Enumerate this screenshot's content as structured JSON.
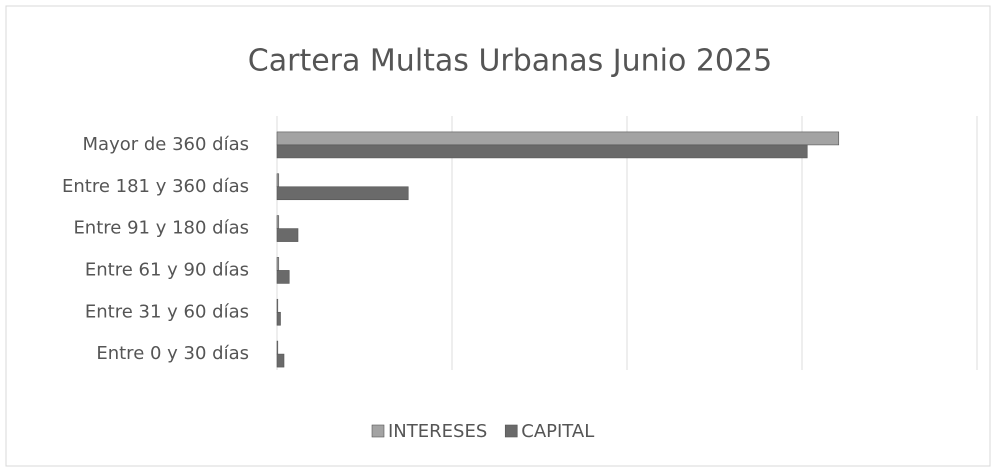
{
  "chart_data": {
    "type": "hbar",
    "title": "Cartera Multas Urbanas Junio 2025",
    "categories": [
      "Mayor de 360 días",
      "Entre 181 y 360 días",
      "Entre 91 y 180 días",
      "Entre 61 y 90 días",
      "Entre 31 y 60 días",
      "Entre 0 y 30 días"
    ],
    "series": [
      {
        "name": "INTERESES",
        "color": "#a3a3a3",
        "values": [
          3.21,
          0.01,
          0.01,
          0.01,
          0,
          0
        ]
      },
      {
        "name": "CAPITAL",
        "color": "#6a6a6a",
        "values": [
          3.03,
          0.75,
          0.12,
          0.07,
          0.02,
          0.04
        ]
      }
    ],
    "xlim": [
      0,
      4
    ],
    "xticks": [
      0,
      1,
      2,
      3,
      4
    ],
    "tick_labels": false,
    "grid": true,
    "legend": "bottom"
  }
}
